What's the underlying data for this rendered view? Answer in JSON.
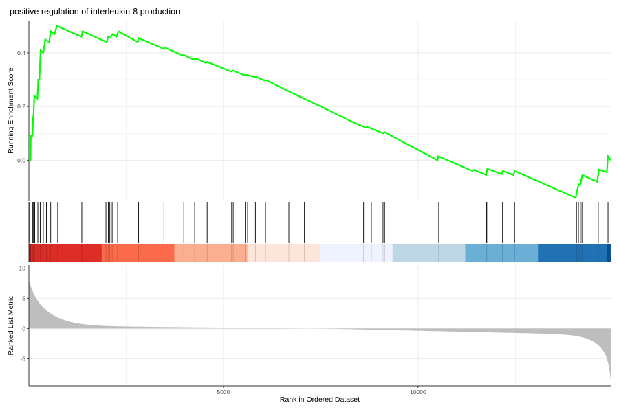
{
  "chart_data": {
    "type": "line",
    "title": "positive regulation of interleukin-8 production",
    "xlabel": "Rank in Ordered Dataset",
    "x_ticks": [
      5000,
      10000
    ],
    "xlim": [
      0,
      14950
    ],
    "grid": true,
    "colors": {
      "es_line": "#00FF00",
      "hit": "#000000",
      "metric_fill": "#BEBEBE",
      "axis": "#333333",
      "grid": "#EBEBEB",
      "heat_bands": [
        "#DE2D26",
        "#FB6A4A",
        "#FCAE91",
        "#FEE5D9",
        "#EFF3FF",
        "#BDD7E7",
        "#6BAED6",
        "#2171B5"
      ]
    },
    "enrichment_panel": {
      "ylabel": "Running Enrichment Score",
      "y_ticks": [
        0.0,
        0.2,
        0.4
      ],
      "ylim": [
        -0.15,
        0.52
      ],
      "points": [
        [
          0,
          0.0
        ],
        [
          40,
          0.0
        ],
        [
          50,
          0.09
        ],
        [
          90,
          0.09
        ],
        [
          110,
          0.16
        ],
        [
          120,
          0.17
        ],
        [
          140,
          0.24
        ],
        [
          220,
          0.23
        ],
        [
          240,
          0.3
        ],
        [
          270,
          0.3
        ],
        [
          300,
          0.41
        ],
        [
          370,
          0.4
        ],
        [
          420,
          0.45
        ],
        [
          520,
          0.44
        ],
        [
          560,
          0.48
        ],
        [
          660,
          0.47
        ],
        [
          720,
          0.5
        ],
        [
          1350,
          0.46
        ],
        [
          1380,
          0.48
        ],
        [
          2000,
          0.44
        ],
        [
          2040,
          0.46
        ],
        [
          2100,
          0.46
        ],
        [
          2150,
          0.47
        ],
        [
          2250,
          0.46
        ],
        [
          2300,
          0.48
        ],
        [
          2800,
          0.44
        ],
        [
          2820,
          0.455
        ],
        [
          3460,
          0.415
        ],
        [
          3490,
          0.42
        ],
        [
          3950,
          0.39
        ],
        [
          3980,
          0.392
        ],
        [
          4240,
          0.374
        ],
        [
          4270,
          0.38
        ],
        [
          4550,
          0.362
        ],
        [
          4580,
          0.366
        ],
        [
          5200,
          0.33
        ],
        [
          5240,
          0.334
        ],
        [
          5550,
          0.316
        ],
        [
          5600,
          0.318
        ],
        [
          5800,
          0.31
        ],
        [
          5850,
          0.31
        ],
        [
          6050,
          0.297
        ],
        [
          6100,
          0.298
        ],
        [
          6700,
          0.255
        ],
        [
          7500,
          0.2
        ],
        [
          8350,
          0.14
        ],
        [
          8650,
          0.122
        ],
        [
          8700,
          0.124
        ],
        [
          9100,
          0.1
        ],
        [
          9130,
          0.105
        ],
        [
          10500,
          0.0
        ],
        [
          10520,
          0.015
        ],
        [
          11400,
          -0.04
        ],
        [
          11420,
          -0.035
        ],
        [
          11750,
          -0.055
        ],
        [
          11780,
          -0.032
        ],
        [
          12150,
          -0.052
        ],
        [
          12180,
          -0.04
        ],
        [
          12450,
          -0.055
        ],
        [
          12480,
          -0.04
        ],
        [
          14050,
          -0.14
        ],
        [
          14080,
          -0.115
        ],
        [
          14130,
          -0.09
        ],
        [
          14170,
          -0.09
        ],
        [
          14220,
          -0.055
        ],
        [
          14600,
          -0.08
        ],
        [
          14650,
          -0.035
        ],
        [
          14850,
          -0.045
        ],
        [
          14880,
          0.015
        ],
        [
          14950,
          0.0
        ]
      ]
    },
    "hits_panel": {
      "hits": [
        20,
        100,
        120,
        150,
        230,
        290,
        370,
        450,
        560,
        740,
        1360,
        1980,
        2040,
        2080,
        2140,
        2280,
        2820,
        3470,
        3980,
        4260,
        4580,
        5210,
        5250,
        5560,
        5620,
        5820,
        6080,
        6680,
        7080,
        8600,
        8800,
        9100,
        9140,
        10530,
        11460,
        11760,
        11790,
        12170,
        12480,
        14070,
        14120,
        14170,
        14210,
        14630,
        14880
      ]
    },
    "metric_panel": {
      "ylabel": "Ranked List Metric",
      "y_ticks": [
        -5,
        0,
        5,
        10
      ],
      "ylim": [
        -9.5,
        10.5
      ],
      "max_value": 8,
      "min_value": -8.5
    }
  }
}
